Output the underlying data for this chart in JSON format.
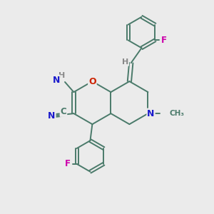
{
  "bg_color": "#ebebeb",
  "bond_color": "#4a7a6a",
  "atom_colors": {
    "N": "#1a1acc",
    "O": "#cc2200",
    "F": "#cc00aa",
    "C": "#4a7a6a",
    "H": "#888888"
  },
  "figsize": [
    3.0,
    3.0
  ],
  "dpi": 100,
  "bond_lw": 1.4,
  "core": {
    "lcx": 4.35,
    "lcy": 5.15,
    "rr": 1.0
  }
}
